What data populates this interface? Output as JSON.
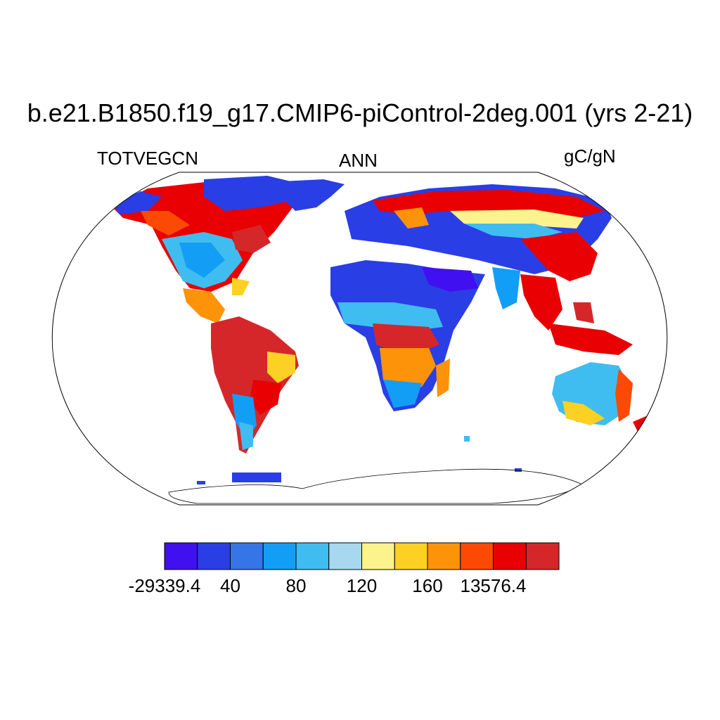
{
  "title": "b.e21.B1850.f19_g17.CMIP6-piControl-2deg.001 (yrs 2-21)",
  "variable": "TOTVEGCN",
  "season": "ANN",
  "units": "gC/gN",
  "colorbar": {
    "colors": [
      "#4110f0",
      "#2a3ee6",
      "#3575e8",
      "#139ef6",
      "#3fbdf0",
      "#a8d8ef",
      "#fdf38c",
      "#fdd024",
      "#fc9308",
      "#fc4a04",
      "#e80002",
      "#d5272a"
    ],
    "tick_labels": [
      "-29339.4",
      "40",
      "80",
      "120",
      "160",
      "13576.4"
    ]
  }
}
